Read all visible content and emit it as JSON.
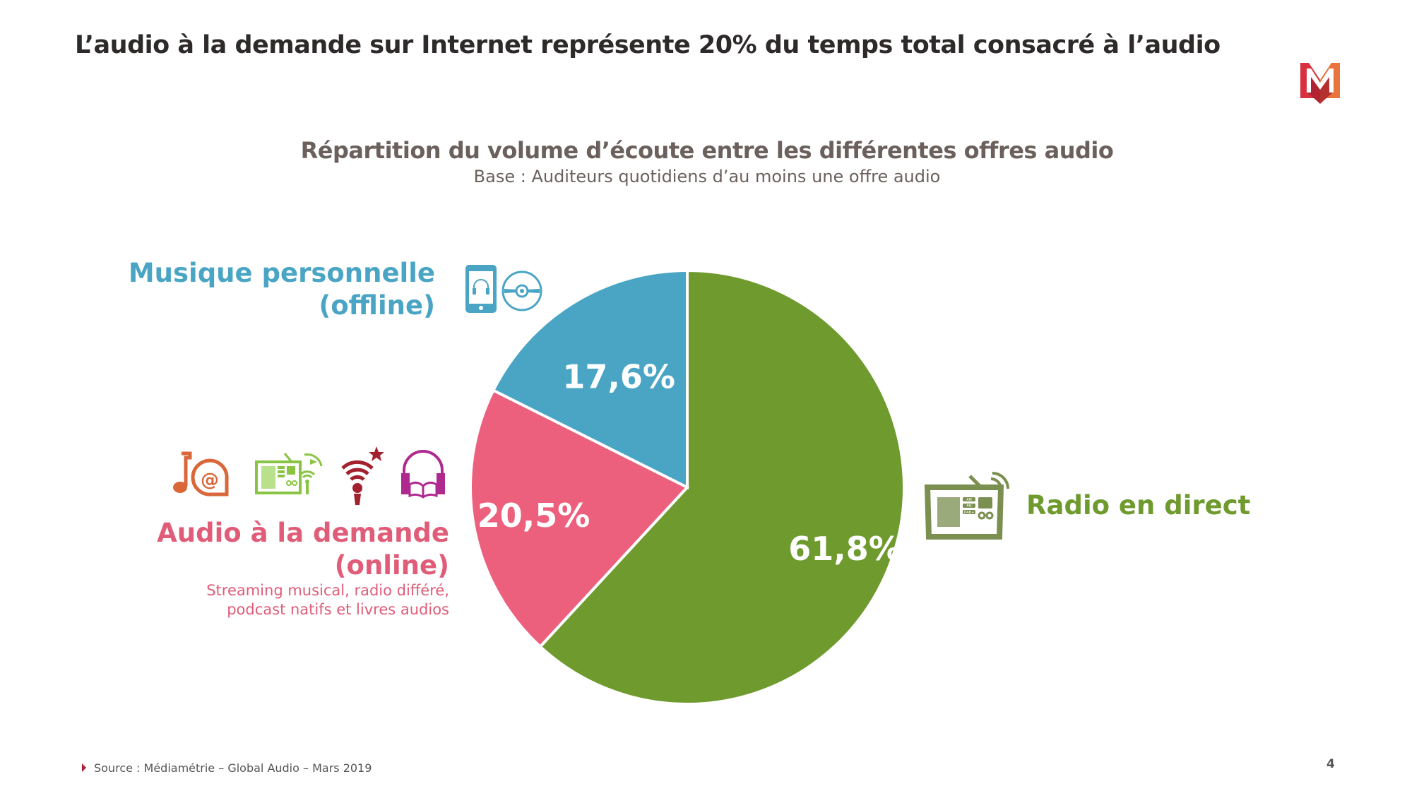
{
  "title": "L’audio à la demande sur Internet représente 20% du temps total consacré à l’audio",
  "logo": {
    "letter": "M",
    "colors": [
      "#d8303f",
      "#e8743b",
      "#a8202e"
    ]
  },
  "chart_data": {
    "type": "pie",
    "title": "Répartition du volume d’écoute entre les différentes offres audio",
    "subtitle": "Base : Auditeurs quotidiens d’au moins une offre audio",
    "slices": [
      {
        "name": "Radio en direct",
        "value": 61.8,
        "label": "61,8%",
        "color": "#6e9a2e"
      },
      {
        "name": "Audio à la demande (online)",
        "value": 20.5,
        "label": "20,5%",
        "color": "#ed607d"
      },
      {
        "name": "Musique personnelle (offline)",
        "value": 17.6,
        "label": "17,6%",
        "color": "#4aa5c4"
      }
    ],
    "start": "top",
    "direction": "clockwise"
  },
  "labels": {
    "offline": {
      "line1": "Musique personnelle",
      "line2": "(offline)",
      "icons": [
        "smartphone-headphones-icon",
        "cd-icon"
      ]
    },
    "online": {
      "line1": "Audio à la demande",
      "line2": "(online)",
      "sub1": "Streaming musical, radio différé,",
      "sub2": "podcast natifs et livres audios",
      "icons": [
        "music-note-at-icon",
        "replay-radio-icon",
        "podcast-mic-icon",
        "audiobook-icon"
      ]
    },
    "radio": {
      "text": "Radio en direct",
      "icon": "radio-icon",
      "bands": [
        "AM",
        "FM",
        "DAB+"
      ]
    }
  },
  "footer": {
    "source": "Source : Médiamétrie – Global Audio – Mars 2019",
    "page": "4"
  }
}
